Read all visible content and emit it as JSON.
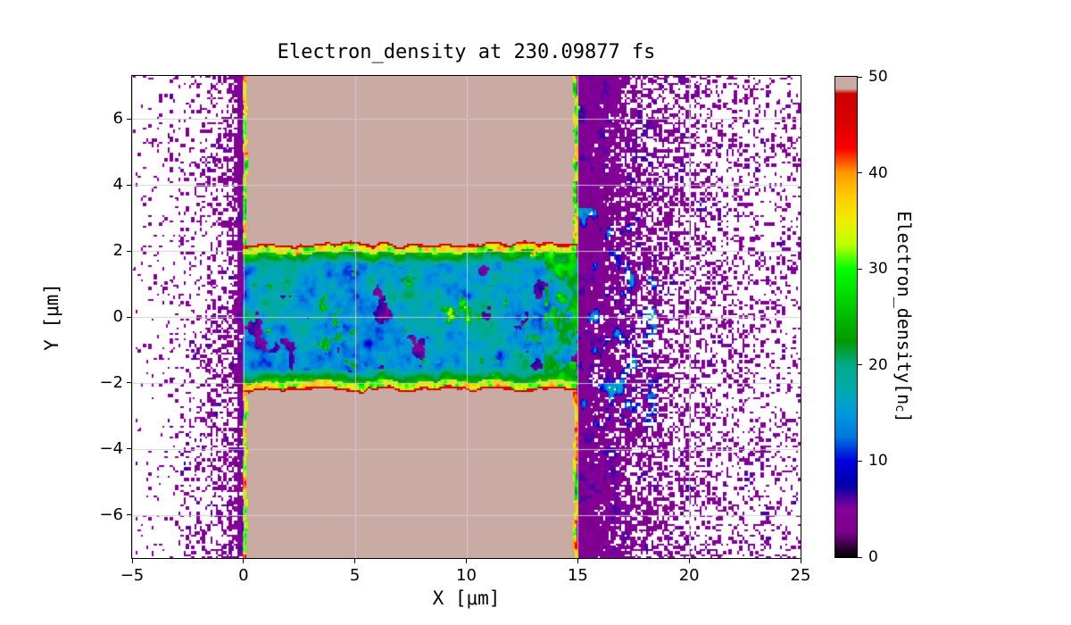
{
  "chart_data": {
    "type": "heatmap",
    "title": "Electron_density at 230.09877 fs",
    "time_fs": 230.09877,
    "xlabel": "X [μm]",
    "ylabel": "Y [μm]",
    "xlim": [
      -5,
      25
    ],
    "ylim": [
      -7.3,
      7.3
    ],
    "xticks": [
      -5,
      0,
      5,
      10,
      15,
      20,
      25
    ],
    "yticks": [
      -6,
      -4,
      -2,
      0,
      2,
      4,
      6
    ],
    "grid": true,
    "colorbar": {
      "label_main": "Electron_density[n",
      "label_sub": "c",
      "label_end": "]",
      "min": 0,
      "max": 50,
      "ticks": [
        0,
        10,
        20,
        30,
        40,
        50
      ],
      "colormap": "nipy_spectral",
      "stops": [
        [
          0,
          "#000000"
        ],
        [
          0.05,
          "#770088"
        ],
        [
          0.1,
          "#880099"
        ],
        [
          0.15,
          "#0000aa"
        ],
        [
          0.2,
          "#0000dd"
        ],
        [
          0.25,
          "#0077dd"
        ],
        [
          0.3,
          "#0099dd"
        ],
        [
          0.35,
          "#00aaaa"
        ],
        [
          0.4,
          "#00aa88"
        ],
        [
          0.45,
          "#009900"
        ],
        [
          0.5,
          "#00bb00"
        ],
        [
          0.55,
          "#00dd00"
        ],
        [
          0.6,
          "#00ff00"
        ],
        [
          0.65,
          "#bbff00"
        ],
        [
          0.7,
          "#eeee00"
        ],
        [
          0.75,
          "#ffcc00"
        ],
        [
          0.8,
          "#ff9900"
        ],
        [
          0.85,
          "#ff0000"
        ],
        [
          0.9,
          "#dd0000"
        ],
        [
          0.965,
          "#cc0000"
        ],
        [
          0.975,
          "#c9aba3"
        ],
        [
          1,
          "#c9aba3"
        ]
      ]
    },
    "features": {
      "target_slab": {
        "x_range": [
          0,
          15
        ],
        "density": 50
      },
      "channel": {
        "x_range": [
          0,
          15
        ],
        "half_width_um": 2.2,
        "interior_density_range": [
          4,
          30
        ],
        "rim_density_range": [
          30,
          50
        ]
      },
      "front_preplasma": {
        "x_range": [
          -5,
          0
        ],
        "density_range": [
          1,
          8
        ]
      },
      "rear_plasma": {
        "x_range": [
          15,
          25
        ],
        "density_range": [
          1,
          14
        ]
      }
    }
  }
}
